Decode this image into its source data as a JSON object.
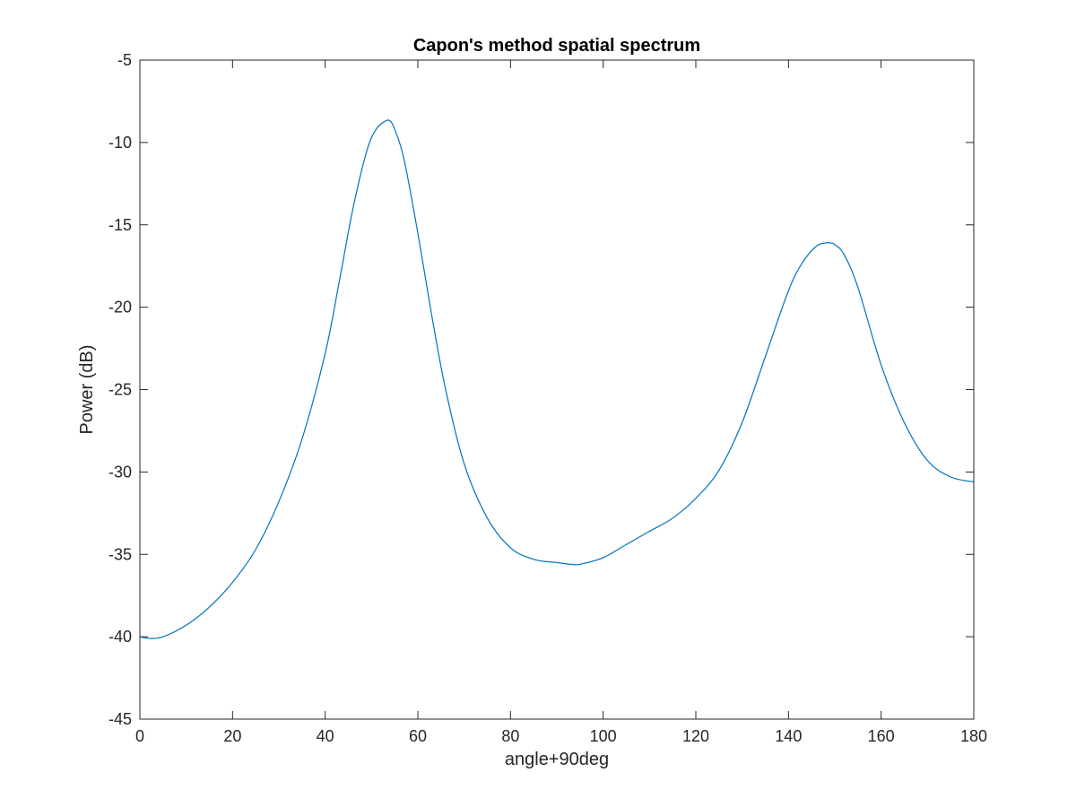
{
  "chart_data": {
    "type": "line",
    "title": "Capon's method spatial spectrum",
    "xlabel": "angle+90deg",
    "ylabel": "Power (dB)",
    "xlim": [
      0,
      180
    ],
    "ylim": [
      -45,
      -5
    ],
    "xticks": [
      0,
      20,
      40,
      60,
      80,
      100,
      120,
      140,
      160,
      180
    ],
    "yticks": [
      -45,
      -40,
      -35,
      -30,
      -25,
      -20,
      -15,
      -10,
      -5
    ],
    "grid": false,
    "legend": "none",
    "series": [
      {
        "color": "#0072BD",
        "x": [
          0,
          2,
          5,
          10,
          15,
          20,
          25,
          30,
          35,
          40,
          43,
          46,
          49,
          51,
          53,
          54,
          55,
          57,
          60,
          63,
          66,
          70,
          75,
          80,
          85,
          90,
          93,
          95,
          100,
          105,
          110,
          115,
          120,
          125,
          130,
          135,
          140,
          143,
          146,
          148,
          149,
          150,
          152,
          155,
          160,
          165,
          170,
          175,
          180
        ],
        "y": [
          -40.0,
          -40.1,
          -40.0,
          -39.3,
          -38.2,
          -36.7,
          -34.7,
          -31.8,
          -28.0,
          -22.8,
          -18.5,
          -14.0,
          -10.5,
          -9.2,
          -8.7,
          -8.7,
          -9.2,
          -11.0,
          -15.5,
          -20.5,
          -25.0,
          -29.5,
          -32.8,
          -34.6,
          -35.3,
          -35.5,
          -35.6,
          -35.6,
          -35.2,
          -34.4,
          -33.6,
          -32.8,
          -31.6,
          -29.9,
          -27.0,
          -23.0,
          -19.0,
          -17.3,
          -16.3,
          -16.1,
          -16.1,
          -16.2,
          -16.8,
          -18.8,
          -23.5,
          -27.0,
          -29.3,
          -30.3,
          -30.6
        ]
      }
    ]
  }
}
